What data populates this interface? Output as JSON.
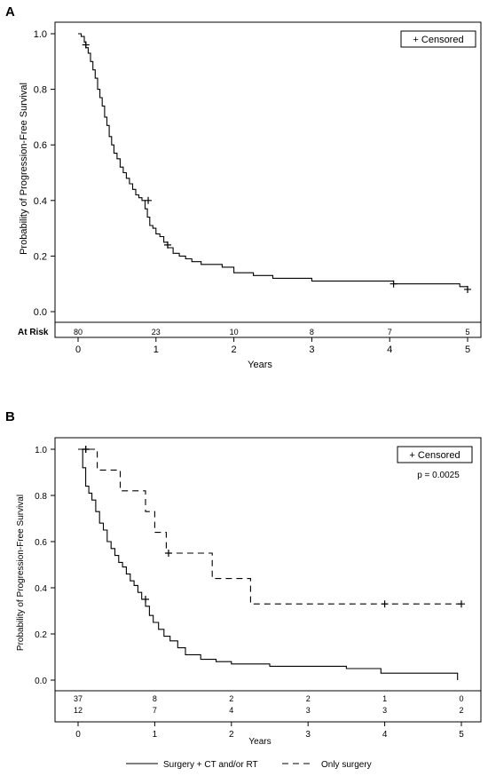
{
  "chart_data": [
    {
      "panel_label": "A",
      "type": "line",
      "ylabel": "Probability of Progression-Free Survival",
      "xlabel": "Years",
      "xlim": [
        0,
        5
      ],
      "ylim": [
        0,
        1
      ],
      "x_ticks": [
        "0",
        "1",
        "2",
        "3",
        "4",
        "5"
      ],
      "y_ticks": [
        "0.0",
        "0.2",
        "0.4",
        "0.6",
        "0.8",
        "1.0"
      ],
      "legend": "+ Censored",
      "legend_position": "top-right",
      "at_risk_label": "At Risk",
      "at_risk": [
        "80",
        "23",
        "10",
        "8",
        "7",
        "5"
      ],
      "series": [
        {
          "line_style": "solid",
          "x": [
            0.0,
            0.04,
            0.08,
            0.1,
            0.13,
            0.16,
            0.19,
            0.22,
            0.25,
            0.28,
            0.31,
            0.34,
            0.37,
            0.4,
            0.43,
            0.46,
            0.5,
            0.54,
            0.58,
            0.62,
            0.66,
            0.7,
            0.74,
            0.78,
            0.82,
            0.86,
            0.89,
            0.92,
            0.96,
            1.0,
            1.05,
            1.1,
            1.15,
            1.22,
            1.3,
            1.38,
            1.46,
            1.58,
            1.7,
            1.85,
            2.0,
            2.25,
            2.5,
            3.0,
            3.5,
            4.05,
            4.5,
            4.9,
            5.0
          ],
          "y": [
            1.0,
            0.99,
            0.97,
            0.95,
            0.93,
            0.9,
            0.87,
            0.84,
            0.8,
            0.77,
            0.74,
            0.7,
            0.67,
            0.63,
            0.6,
            0.57,
            0.55,
            0.52,
            0.5,
            0.48,
            0.46,
            0.44,
            0.42,
            0.41,
            0.4,
            0.37,
            0.34,
            0.31,
            0.3,
            0.28,
            0.27,
            0.25,
            0.23,
            0.21,
            0.2,
            0.19,
            0.18,
            0.17,
            0.17,
            0.16,
            0.14,
            0.13,
            0.12,
            0.11,
            0.11,
            0.1,
            0.1,
            0.09,
            0.08
          ],
          "censored": [
            [
              0.1,
              0.96
            ],
            [
              0.9,
              0.4
            ],
            [
              1.15,
              0.24
            ],
            [
              4.05,
              0.1
            ],
            [
              5.0,
              0.08
            ]
          ]
        }
      ]
    },
    {
      "panel_label": "B",
      "type": "line",
      "ylabel": "Probability of Progression-Free Survival",
      "xlabel": "Years",
      "xlim": [
        0,
        5
      ],
      "ylim": [
        0,
        1
      ],
      "x_ticks": [
        "0",
        "1",
        "2",
        "3",
        "4",
        "5"
      ],
      "y_ticks": [
        "0.0",
        "0.2",
        "0.4",
        "0.6",
        "0.8",
        "1.0"
      ],
      "legend": "+ Censored",
      "legend_position": "top-right",
      "annotation": "p = 0.0025",
      "at_risk_rows": [
        [
          "37",
          "8",
          "2",
          "2",
          "1",
          "0"
        ],
        [
          "12",
          "7",
          "4",
          "3",
          "3",
          "2"
        ]
      ],
      "series": [
        {
          "name": "Surgery + CT and/or RT",
          "line_style": "solid",
          "x": [
            0.0,
            0.06,
            0.1,
            0.14,
            0.18,
            0.23,
            0.28,
            0.33,
            0.38,
            0.43,
            0.48,
            0.53,
            0.58,
            0.63,
            0.68,
            0.73,
            0.78,
            0.83,
            0.88,
            0.93,
            0.98,
            1.05,
            1.12,
            1.2,
            1.3,
            1.4,
            1.6,
            1.8,
            2.0,
            2.5,
            3.0,
            3.5,
            3.95,
            4.5,
            4.95
          ],
          "y": [
            1.0,
            0.92,
            0.84,
            0.81,
            0.78,
            0.73,
            0.68,
            0.65,
            0.6,
            0.57,
            0.54,
            0.51,
            0.49,
            0.46,
            0.43,
            0.41,
            0.38,
            0.35,
            0.32,
            0.28,
            0.25,
            0.22,
            0.19,
            0.17,
            0.14,
            0.11,
            0.09,
            0.08,
            0.07,
            0.06,
            0.06,
            0.05,
            0.03,
            0.03,
            0.0
          ],
          "censored": [
            [
              0.1,
              1.0
            ],
            [
              0.88,
              0.35
            ]
          ]
        },
        {
          "name": "Only surgery",
          "line_style": "dashed",
          "x": [
            0.0,
            0.25,
            0.55,
            0.88,
            1.0,
            1.15,
            1.75,
            2.25,
            5.0
          ],
          "y": [
            1.0,
            0.91,
            0.82,
            0.73,
            0.64,
            0.55,
            0.44,
            0.33,
            0.33
          ],
          "censored": [
            [
              0.1,
              1.0
            ],
            [
              1.18,
              0.55
            ],
            [
              4.0,
              0.33
            ],
            [
              5.0,
              0.33
            ]
          ]
        }
      ]
    }
  ]
}
